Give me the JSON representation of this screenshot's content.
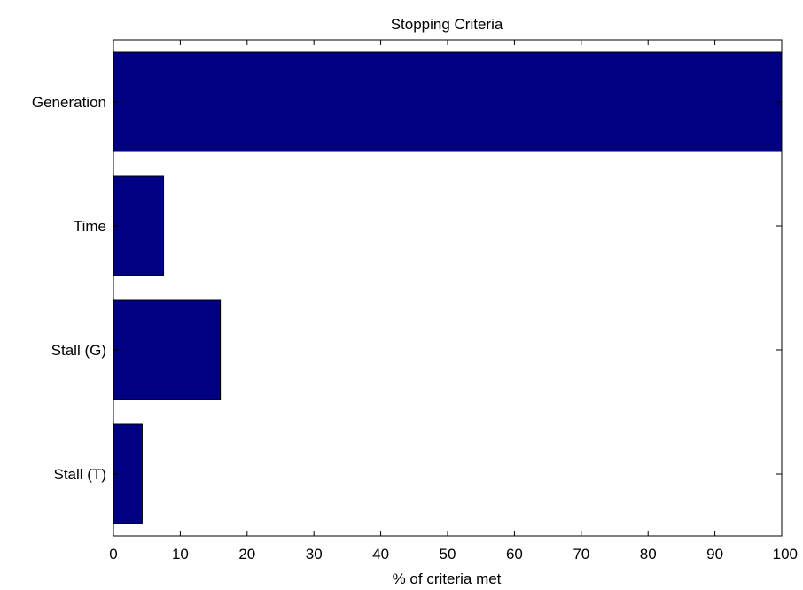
{
  "chart_data": {
    "type": "bar",
    "orientation": "horizontal",
    "title": "Stopping Criteria",
    "xlabel": "% of criteria met",
    "ylabel": "",
    "categories": [
      "Generation",
      "Time",
      "Stall (G)",
      "Stall (T)"
    ],
    "values": [
      100,
      7.5,
      16,
      4.3
    ],
    "xlim": [
      0,
      100
    ],
    "xticks": [
      0,
      10,
      20,
      30,
      40,
      50,
      60,
      70,
      80,
      90,
      100
    ],
    "grid": false,
    "legend": "none",
    "colors": {
      "bar": "#000080",
      "bar_edge": "#000000",
      "axes": "#000000",
      "background": "#ffffff"
    }
  }
}
